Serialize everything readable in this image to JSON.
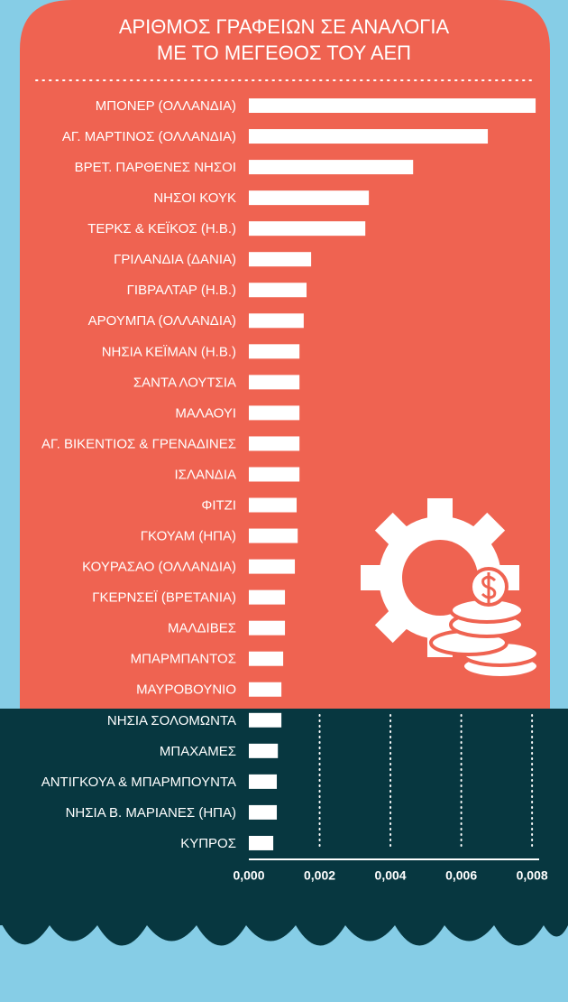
{
  "chart_data": {
    "type": "bar",
    "orientation": "horizontal",
    "title": [
      "ΑΡΙΘΜΟΣ ΓΡΑΦΕΙΩΝ ΣΕ ΑΝΑΛΟΓΙΑ",
      "ΜΕ ΤΟ ΜΕΓΕΘΟΣ ΤΟΥ ΑΕΠ"
    ],
    "categories": [
      "ΜΠΟΝΕΡ (ΟΛΛΑΝΔΙΑ)",
      "ΑΓ. ΜΑΡΤΙΝΟΣ (ΟΛΛΑΝΔΙΑ)",
      "ΒΡΕΤ. ΠΑΡΘΕΝΕΣ ΝΗΣΟΙ",
      "ΝΗΣΟΙ ΚΟΥΚ",
      "ΤΕΡΚΣ & ΚΕΪΚΟΣ (Η.Β.)",
      "ΓΡΙΛΑΝΔΙΑ (ΔΑΝΙΑ)",
      "ΓΙΒΡΑΛΤΑΡ (Η.Β.)",
      "ΑΡΟΥΜΠΑ (ΟΛΛΑΝΔΙΑ)",
      "ΝΗΣΙΑ ΚΕΪΜΑΝ (Η.Β.)",
      "ΣΑΝΤΑ ΛΟΥΤΣΙΑ",
      "ΜΑΛΑΟΥΙ",
      "ΑΓ. ΒΙΚΕΝΤΙΟΣ & ΓΡΕΝΑΔΙΝΕΣ",
      "ΙΣΛΑΝΔΙΑ",
      "ΦΙΤΖΙ",
      "ΓΚΟΥΑΜ (ΗΠΑ)",
      "ΚΟΥΡΑΣΑΟ (ΟΛΛΑΝΔΙΑ)",
      "ΓΚΕΡΝΣΕΪ (ΒΡΕΤΑΝΙΑ)",
      "ΜΑΛΔΙΒΕΣ",
      "ΜΠΑΡΜΠΑΝΤΟΣ",
      "ΜΑΥΡΟΒΟΥΝΙΟ",
      "ΝΗΣΙΑ ΣΟΛΟΜΩΝΤΑ",
      "ΜΠΑΧΑΜΕΣ",
      "ΑΝΤΙΓΚΟΥΑ & ΜΠΑΡΜΠΟΥΝΤΑ",
      "ΝΗΣΙΑ Β. ΜΑΡΙΑΝΕΣ (ΗΠΑ)",
      "ΚΥΠΡΟΣ"
    ],
    "values": [
      0.0081,
      0.00675,
      0.00464,
      0.00339,
      0.00329,
      0.00176,
      0.00163,
      0.00155,
      0.00143,
      0.00143,
      0.00143,
      0.00143,
      0.00143,
      0.00135,
      0.00138,
      0.0013,
      0.00102,
      0.00102,
      0.00097,
      0.00092,
      0.00092,
      0.00082,
      0.00079,
      0.00079,
      0.00069
    ],
    "color": "#ffffff",
    "xlim": [
      0,
      0.0082
    ],
    "xticks": [
      {
        "value": 0,
        "label": "0,000"
      },
      {
        "value": 0.002,
        "label": "0,002"
      },
      {
        "value": 0.004,
        "label": "0,004"
      },
      {
        "value": 0.006,
        "label": "0,006"
      },
      {
        "value": 0.008,
        "label": "0,008"
      }
    ],
    "grid": true
  }
}
